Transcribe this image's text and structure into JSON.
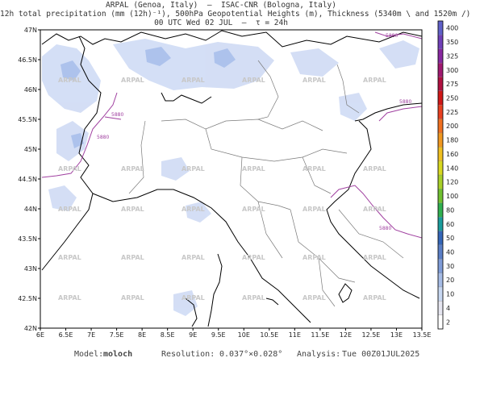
{
  "header": {
    "line1": "ARPAL (Genoa, Italy)  –  ISAC-CNR (Bologna, Italy)",
    "line2": "12h total precipitation (mm (12h)⁻¹), 500hPa Geopotential Heights (m), Thickness (5340m \\ and 1520m /)",
    "line3": "00 UTC Wed 02 JUL  –  τ = 24h"
  },
  "map": {
    "lat_labels": [
      "47N",
      "46.5N",
      "46N",
      "45.5N",
      "45N",
      "44.5N",
      "44N",
      "43.5N",
      "43N",
      "42.5N",
      "42N"
    ],
    "lon_labels": [
      "6E",
      "6.5E",
      "7E",
      "7.5E",
      "8E",
      "8.5E",
      "9E",
      "9.5E",
      "10E",
      "10.5E",
      "11E",
      "11.5E",
      "12E",
      "12.5E",
      "13E",
      "13.5E"
    ],
    "watermark": "ARPAL",
    "contour_label": "5880",
    "colors": {
      "contour": "#a040a0",
      "precip": "#c8d8f4",
      "coast": "#000000",
      "border": "#666666"
    }
  },
  "colorbar": {
    "levels": [
      "2",
      "4",
      "10",
      "20",
      "30",
      "40",
      "50",
      "60",
      "80",
      "100",
      "120",
      "140",
      "160",
      "180",
      "200",
      "225",
      "250",
      "275",
      "300",
      "325",
      "350",
      "400"
    ],
    "colors": [
      "#ffffff",
      "#e6e6f0",
      "#c8d8f2",
      "#a6bce6",
      "#7f9cd8",
      "#5a7ec6",
      "#3466b8",
      "#1a9c9c",
      "#30b050",
      "#70c030",
      "#a8d028",
      "#d8d820",
      "#f0c020",
      "#f09820",
      "#f07020",
      "#e84020",
      "#d01818",
      "#b01040",
      "#a01870",
      "#8828a0",
      "#7040b8",
      "#6060c8"
    ]
  },
  "footer": {
    "model_label": "Model:",
    "model_value": "moloch",
    "resolution_label": "Resolution:",
    "resolution_value": "0.037°×0.028°",
    "analysis_label": "Analysis:",
    "analysis_value": "Tue 00Z01JUL2025"
  }
}
